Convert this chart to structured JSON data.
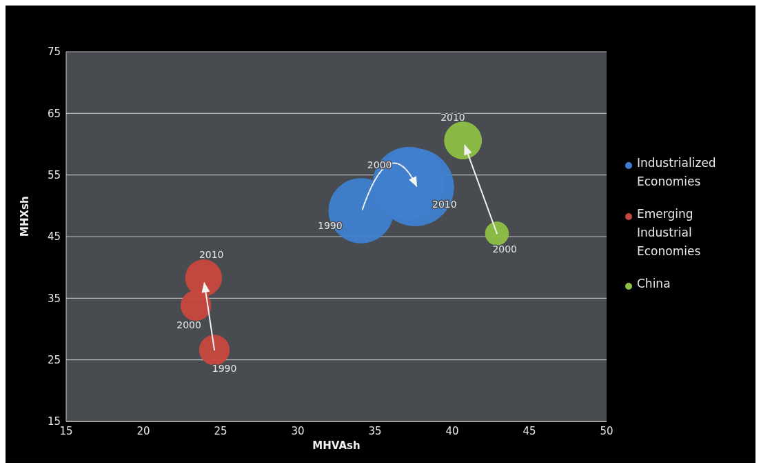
{
  "chart_data": {
    "type": "bubble",
    "xlabel": "MHVAsh",
    "ylabel": "MHXsh",
    "series": [
      {
        "name": "Industrialized Economies",
        "color": "#3f7fcf",
        "x": [
          34.1,
          37.2,
          37.6
        ],
        "values": [
          49.2,
          53.7,
          53.0
        ],
        "sizes": [
          0.7,
          0.86,
          1
        ]
      },
      {
        "name": "Emerging Industrial Economies",
        "color": "#c8473e",
        "x": [
          24.6,
          23.4,
          23.9
        ],
        "values": [
          26.6,
          33.8,
          38.3
        ],
        "sizes": [
          0.15,
          0.15,
          0.22
        ]
      },
      {
        "name": "China",
        "color": "#8fbf45",
        "x": [
          42.9,
          40.7
        ],
        "values": [
          45.5,
          60.6
        ],
        "sizes": [
          0.09,
          0.23
        ]
      }
    ],
    "annotations": [
      {
        "text": "1990",
        "x": 34.1,
        "y": 49.2
      },
      {
        "text": "2000",
        "x": 37.2,
        "y": 53.7
      },
      {
        "text": "2010",
        "x": 37.6,
        "y": 53.0
      },
      {
        "text": "1990",
        "x": 24.6,
        "y": 26.6
      },
      {
        "text": "2000",
        "x": 23.4,
        "y": 33.8
      },
      {
        "text": "2010",
        "x": 23.9,
        "y": 38.3
      },
      {
        "text": "2000",
        "x": 42.9,
        "y": 45.5
      },
      {
        "text": "2010",
        "x": 40.7,
        "y": 60.6
      }
    ],
    "xlim": [
      15,
      50
    ],
    "xticks": [
      15,
      20,
      25,
      30,
      35,
      40,
      45,
      50
    ],
    "ylim": [
      15,
      75
    ],
    "yticks": [
      15,
      25,
      35,
      45,
      55,
      65,
      75
    ],
    "grid": "y",
    "legend": "right"
  }
}
